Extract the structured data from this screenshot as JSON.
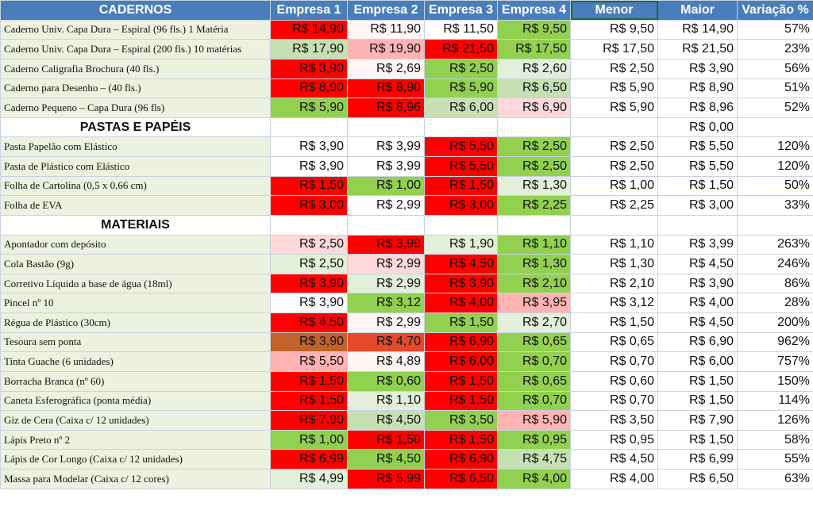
{
  "colors": {
    "header_bg": "#4a7ebb",
    "header_text": "#ffffff",
    "name_bg": "#edf1e0",
    "grid": "#c8d3e0",
    "scale": {
      "red": "#ff0000",
      "dark_orange": "#c0622b",
      "orange_red": "#e24a2b",
      "pink": "#ffb3b3",
      "light_pink": "#ffd9d9",
      "very_light": "#fff5f5",
      "white": "#ffffff",
      "light_green": "#e2efda",
      "pale_green": "#c6e0b4",
      "green": "#92d050"
    }
  },
  "headers": [
    "CADERNOS",
    "Empresa 1",
    "Empresa 2",
    "Empresa 3",
    "Empresa 4",
    "Menor",
    "Maior",
    "Variação %"
  ],
  "rows": [
    {
      "type": "item",
      "name": "Caderno Univ. Capa Dura – Espiral (96 fls.) 1 Matéria",
      "prices": [
        "R$ 14,90",
        "R$ 11,90",
        "R$ 11,50",
        "R$ 9,50"
      ],
      "colors": [
        "red",
        "very_light",
        "white",
        "green"
      ],
      "min": "R$ 9,50",
      "max": "R$ 14,90",
      "var": "57%"
    },
    {
      "type": "item",
      "name": "Caderno Univ. Capa Dura – Espiral (200 fls.) 10 matérias",
      "prices": [
        "R$ 17,90",
        "R$ 19,90",
        "R$ 21,50",
        "R$ 17,50"
      ],
      "colors": [
        "pale_green",
        "pink",
        "red",
        "green"
      ],
      "min": "R$ 17,50",
      "max": "R$ 21,50",
      "var": "23%"
    },
    {
      "type": "item",
      "name": "Caderno Caligrafia Brochura (40 fls.)",
      "prices": [
        "R$ 3,90",
        "R$ 2,69",
        "R$ 2,50",
        "R$ 2,60"
      ],
      "colors": [
        "red",
        "very_light",
        "green",
        "light_green"
      ],
      "min": "R$ 2,50",
      "max": "R$ 3,90",
      "var": "56%"
    },
    {
      "type": "item",
      "name": "Caderno para Desenho – (40 fls.)",
      "prices": [
        "R$ 8,90",
        "R$ 8,90",
        "R$ 5,90",
        "R$ 6,50"
      ],
      "colors": [
        "red",
        "red",
        "green",
        "pale_green"
      ],
      "min": "R$ 5,90",
      "max": "R$ 8,90",
      "var": "51%"
    },
    {
      "type": "item",
      "name": "Caderno Pequeno – Capa Dura (96 fls)",
      "prices": [
        "R$ 5,90",
        "R$ 8,96",
        "R$ 6,00",
        "R$ 6,90"
      ],
      "colors": [
        "green",
        "red",
        "pale_green",
        "light_pink"
      ],
      "min": "R$ 5,90",
      "max": "R$ 8,96",
      "var": "52%"
    },
    {
      "type": "section",
      "name": "PASTAS E PAPÉIS",
      "max": "R$ 0,00"
    },
    {
      "type": "item",
      "name": "Pasta Papelão com Elástico",
      "prices": [
        "R$ 3,90",
        "R$ 3,99",
        "R$ 5,50",
        "R$ 2,50"
      ],
      "colors": [
        "white",
        "white",
        "red",
        "green"
      ],
      "min": "R$ 2,50",
      "max": "R$ 5,50",
      "var": "120%"
    },
    {
      "type": "item",
      "name": "Pasta de Plástico com Elástico",
      "prices": [
        "R$ 3,90",
        "R$ 3,99",
        "R$ 5,50",
        "R$ 2,50"
      ],
      "colors": [
        "white",
        "white",
        "red",
        "green"
      ],
      "min": "R$ 2,50",
      "max": "R$ 5,50",
      "var": "120%"
    },
    {
      "type": "item",
      "name": "Folha de Cartolina (0,5 x 0,66 cm)",
      "prices": [
        "R$ 1,50",
        "R$ 1,00",
        "R$ 1,50",
        "R$ 1,30"
      ],
      "colors": [
        "red",
        "green",
        "red",
        "light_green"
      ],
      "min": "R$ 1,00",
      "max": "R$ 1,50",
      "var": "50%"
    },
    {
      "type": "item",
      "name": "Folha de EVA",
      "prices": [
        "R$ 3,00",
        "R$ 2,99",
        "R$ 3,00",
        "R$ 2,25"
      ],
      "colors": [
        "red",
        "white",
        "red",
        "green"
      ],
      "min": "R$ 2,25",
      "max": "R$ 3,00",
      "var": "33%"
    },
    {
      "type": "section",
      "name": "MATERIAIS"
    },
    {
      "type": "item",
      "name": "Apontador com depósito",
      "prices": [
        "R$ 2,50",
        "R$ 3,99",
        "R$ 1,90",
        "R$ 1,10"
      ],
      "colors": [
        "light_pink",
        "red",
        "light_green",
        "green"
      ],
      "min": "R$ 1,10",
      "max": "R$ 3,99",
      "var": "263%"
    },
    {
      "type": "item",
      "name": "Cola Bastão (9g)",
      "prices": [
        "R$ 2,50",
        "R$ 2,99",
        "R$ 4,50",
        "R$ 1,30"
      ],
      "colors": [
        "light_green",
        "light_pink",
        "red",
        "green"
      ],
      "min": "R$ 1,30",
      "max": "R$ 4,50",
      "var": "246%"
    },
    {
      "type": "item",
      "name": "Corretivo Líquido a base de água (18ml)",
      "prices": [
        "R$ 3,90",
        "R$ 2,99",
        "R$ 3,90",
        "R$ 2,10"
      ],
      "colors": [
        "red",
        "light_green",
        "red",
        "green"
      ],
      "min": "R$ 2,10",
      "max": "R$ 3,90",
      "var": "86%"
    },
    {
      "type": "item",
      "name": "Pincel nº 10",
      "prices": [
        "R$ 3,90",
        "R$ 3,12",
        "R$ 4,00",
        "R$ 3,95"
      ],
      "colors": [
        "white",
        "green",
        "red",
        "pink"
      ],
      "min": "R$ 3,12",
      "max": "R$ 4,00",
      "var": "28%"
    },
    {
      "type": "item",
      "name": "Régua de Plástico (30cm)",
      "prices": [
        "R$ 4,50",
        "R$ 2,99",
        "R$ 1,50",
        "R$ 2,70"
      ],
      "colors": [
        "red",
        "very_light",
        "green",
        "light_green"
      ],
      "min": "R$ 1,50",
      "max": "R$ 4,50",
      "var": "200%"
    },
    {
      "type": "item",
      "name": "Tesoura sem ponta",
      "prices": [
        "R$ 3,90",
        "R$ 4,70",
        "R$ 6,90",
        "R$ 0,65"
      ],
      "colors": [
        "dark_orange",
        "orange_red",
        "red",
        "green"
      ],
      "min": "R$ 0,65",
      "max": "R$ 6,90",
      "var": "962%"
    },
    {
      "type": "item",
      "name": "Tinta Guache (6 unidades)",
      "prices": [
        "R$ 5,50",
        "R$ 4,89",
        "R$ 6,00",
        "R$ 0,70"
      ],
      "colors": [
        "pink",
        "very_light",
        "red",
        "green"
      ],
      "min": "R$ 0,70",
      "max": "R$ 6,00",
      "var": "757%"
    },
    {
      "type": "item",
      "name": "Borracha Branca (nº 60)",
      "prices": [
        "R$ 1,50",
        "R$ 0,60",
        "R$ 1,50",
        "R$ 0,65"
      ],
      "colors": [
        "red",
        "green",
        "red",
        "green"
      ],
      "min": "R$ 0,60",
      "max": "R$ 1,50",
      "var": "150%"
    },
    {
      "type": "item",
      "name": "Caneta Esferográfica (ponta média)",
      "prices": [
        "R$ 1,50",
        "R$ 1,10",
        "R$ 1,50",
        "R$ 0,70"
      ],
      "colors": [
        "red",
        "light_green",
        "red",
        "green"
      ],
      "min": "R$ 0,70",
      "max": "R$ 1,50",
      "var": "114%"
    },
    {
      "type": "item",
      "name": "Giz de Cera (Caixa c/ 12 unidades)",
      "prices": [
        "R$ 7,90",
        "R$ 4,50",
        "R$ 3,50",
        "R$ 5,90"
      ],
      "colors": [
        "red",
        "pale_green",
        "green",
        "pink"
      ],
      "min": "R$ 3,50",
      "max": "R$ 7,90",
      "var": "126%"
    },
    {
      "type": "item",
      "name": "Lápis Preto nº 2",
      "prices": [
        "R$ 1,00",
        "R$ 1,50",
        "R$ 1,50",
        "R$ 0,95"
      ],
      "colors": [
        "green",
        "red",
        "red",
        "green"
      ],
      "min": "R$ 0,95",
      "max": "R$ 1,50",
      "var": "58%"
    },
    {
      "type": "item",
      "name": "Lápis de Cor Longo (Caixa c/ 12 unidades)",
      "prices": [
        "R$ 6,99",
        "R$ 4,50",
        "R$ 6,90",
        "R$ 4,75"
      ],
      "colors": [
        "red",
        "green",
        "red",
        "pale_green"
      ],
      "min": "R$ 4,50",
      "max": "R$ 6,99",
      "var": "55%"
    },
    {
      "type": "item",
      "name": "Massa para Modelar (Caixa c/ 12 cores)",
      "prices": [
        "R$ 4,99",
        "R$ 5,99",
        "R$ 6,50",
        "R$ 4,00"
      ],
      "colors": [
        "light_green",
        "red",
        "red",
        "green"
      ],
      "min": "R$ 4,00",
      "max": "R$ 6,50",
      "var": "63%"
    }
  ]
}
